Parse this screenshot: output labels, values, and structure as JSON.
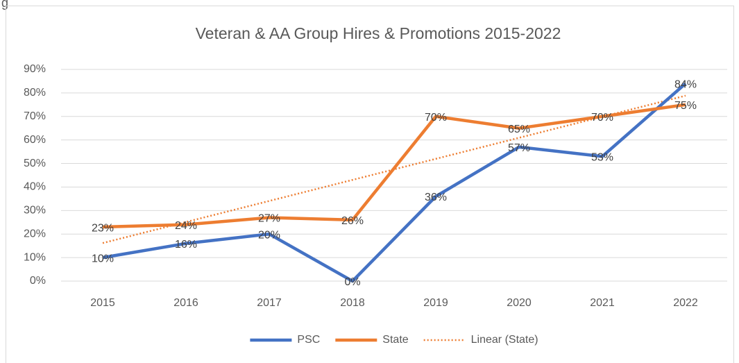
{
  "caption": "g",
  "chart_data": {
    "type": "line",
    "title": "Veteran & AA Group Hires & Promotions 2015-2022",
    "categories": [
      "2015",
      "2016",
      "2017",
      "2018",
      "2019",
      "2020",
      "2021",
      "2022"
    ],
    "series": [
      {
        "name": "PSC",
        "color": "#4472c4",
        "values": [
          10,
          16,
          20,
          0,
          36,
          57,
          53,
          84
        ],
        "value_labels": [
          "10%",
          "16%",
          "20%",
          "0%",
          "36%",
          "57%",
          "53%",
          "84%"
        ]
      },
      {
        "name": "State",
        "color": "#ed7d31",
        "values": [
          23,
          24,
          27,
          26,
          70,
          65,
          70,
          75
        ],
        "value_labels": [
          "23%",
          "24%",
          "27%",
          "26%",
          "70%",
          "65%",
          "70%",
          "75%"
        ],
        "trendline": {
          "type": "linear",
          "name": "Linear (State)"
        }
      }
    ],
    "ylim": [
      0,
      90
    ],
    "yticks": [
      {
        "value": 0,
        "label": "0%"
      },
      {
        "value": 10,
        "label": "10%"
      },
      {
        "value": 20,
        "label": "20%"
      },
      {
        "value": 30,
        "label": "30%"
      },
      {
        "value": 40,
        "label": "40%"
      },
      {
        "value": 50,
        "label": "50%"
      },
      {
        "value": 60,
        "label": "60%"
      },
      {
        "value": 70,
        "label": "70%"
      },
      {
        "value": 80,
        "label": "80%"
      },
      {
        "value": 90,
        "label": "90%"
      }
    ],
    "grid": true,
    "legend": "bottom"
  }
}
